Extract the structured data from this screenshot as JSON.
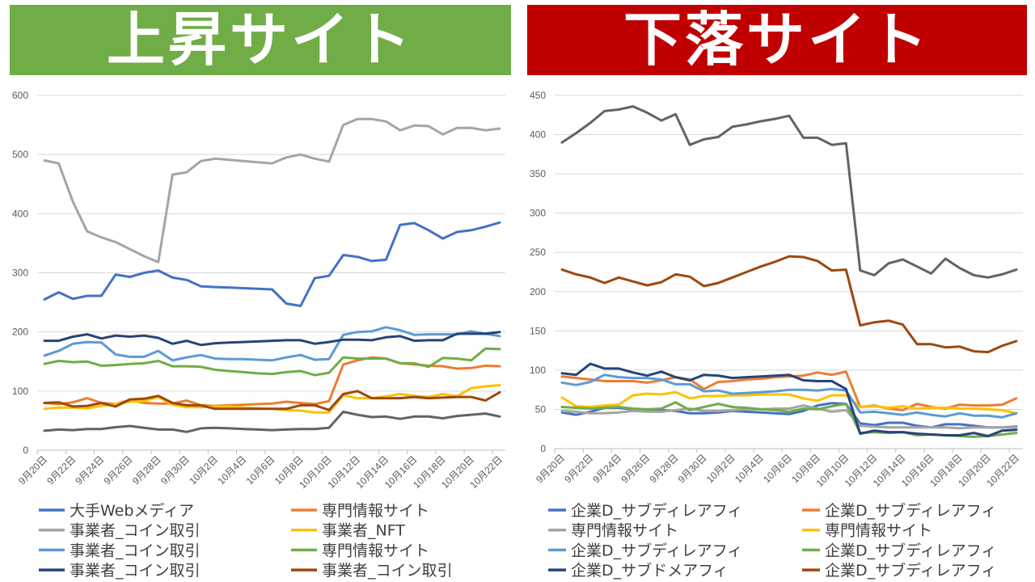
{
  "headers": {
    "left": {
      "title": "上昇サイト",
      "color": "#70AD47"
    },
    "right": {
      "title": "下落サイト",
      "color": "#C00000"
    }
  },
  "chart_data": [
    {
      "type": "line",
      "title": "上昇サイト",
      "ylim": [
        0,
        600
      ],
      "yticks": [
        0,
        100,
        200,
        300,
        400,
        500,
        600
      ],
      "grid": true,
      "legend_position": "bottom",
      "x": [
        "9月20日",
        "9月21日",
        "9月22日",
        "9月23日",
        "9月24日",
        "9月25日",
        "9月26日",
        "9月27日",
        "9月28日",
        "9月29日",
        "9月30日",
        "10月1日",
        "10月2日",
        "10月3日",
        "10月4日",
        "10月5日",
        "10月6日",
        "10月7日",
        "10月8日",
        "10月9日",
        "10月10日",
        "10月11日",
        "10月12日",
        "10月13日",
        "10月14日",
        "10月15日",
        "10月16日",
        "10月17日",
        "10月18日",
        "10月19日",
        "10月20日",
        "10月21日",
        "10月22日"
      ],
      "xtick_labels": [
        "9月20日",
        "9月22日",
        "9月24日",
        "9月26日",
        "9月28日",
        "9月30日",
        "10月2日",
        "10月4日",
        "10月6日",
        "10月8日",
        "10月10日",
        "10月12日",
        "10月14日",
        "10月16日",
        "10月18日",
        "10月20日",
        "10月22日"
      ],
      "series": [
        {
          "name": "大手Webメディア",
          "color": "#4472C4",
          "values": [
            255,
            267,
            256,
            261,
            261,
            297,
            293,
            300,
            304,
            292,
            288,
            277,
            276,
            275,
            274,
            273,
            272,
            248,
            244,
            291,
            295,
            330,
            327,
            320,
            322,
            381,
            384,
            372,
            358,
            369,
            372,
            378,
            385
          ]
        },
        {
          "name": "専門情報サイト",
          "color": "#ED7D31",
          "values": [
            80,
            78,
            81,
            88,
            80,
            78,
            85,
            80,
            79,
            79,
            84,
            76,
            75,
            76,
            77,
            78,
            79,
            82,
            80,
            78,
            83,
            145,
            152,
            157,
            155,
            147,
            145,
            143,
            142,
            138,
            139,
            143,
            142
          ]
        },
        {
          "name": "事業者_コイン取引",
          "color": "#A5A5A5",
          "values": [
            490,
            485,
            420,
            370,
            360,
            352,
            340,
            328,
            318,
            466,
            470,
            489,
            493,
            491,
            489,
            487,
            485,
            495,
            500,
            493,
            488,
            550,
            560,
            560,
            556,
            541,
            549,
            548,
            534,
            545,
            545,
            541,
            544
          ]
        },
        {
          "name": "事業者_NFT",
          "color": "#FFC000",
          "values": [
            70,
            72,
            72,
            71,
            75,
            78,
            82,
            83,
            90,
            77,
            73,
            73,
            74,
            74,
            72,
            71,
            70,
            68,
            67,
            64,
            64,
            93,
            88,
            88,
            91,
            95,
            92,
            90,
            95,
            91,
            105,
            108,
            110
          ]
        },
        {
          "name": "事業者_コイン取引",
          "color": "#5B9BD5",
          "values": [
            160,
            168,
            180,
            183,
            182,
            162,
            158,
            158,
            168,
            152,
            157,
            161,
            155,
            154,
            154,
            153,
            152,
            157,
            161,
            153,
            154,
            195,
            200,
            201,
            208,
            203,
            195,
            196,
            196,
            196,
            201,
            197,
            193
          ]
        },
        {
          "name": "専門情報サイト",
          "color": "#70AD47",
          "values": [
            146,
            151,
            149,
            150,
            143,
            144,
            146,
            147,
            151,
            142,
            142,
            141,
            136,
            134,
            132,
            130,
            129,
            132,
            134,
            127,
            131,
            157,
            155,
            155,
            155,
            147,
            147,
            141,
            156,
            155,
            152,
            172,
            171
          ]
        },
        {
          "name": "事業者_コイン取引",
          "color": "#264478",
          "values": [
            185,
            185,
            192,
            196,
            189,
            194,
            192,
            194,
            190,
            180,
            185,
            178,
            181,
            182,
            183,
            184,
            185,
            186,
            186,
            180,
            183,
            187,
            187,
            186,
            191,
            193,
            185,
            186,
            186,
            197,
            197,
            197,
            200
          ]
        },
        {
          "name": "事業者_コイン取引",
          "color": "#9E480E",
          "values": [
            80,
            81,
            74,
            75,
            80,
            74,
            86,
            87,
            92,
            80,
            76,
            76,
            70,
            70,
            70,
            70,
            70,
            70,
            76,
            76,
            68,
            95,
            100,
            88,
            88,
            88,
            90,
            88,
            89,
            90,
            90,
            84,
            98
          ]
        },
        {
          "color": "#636363",
          "values": [
            33,
            35,
            34,
            36,
            36,
            39,
            41,
            38,
            35,
            35,
            31,
            37,
            38,
            37,
            36,
            35,
            34,
            35,
            36,
            36,
            38,
            65,
            60,
            56,
            57,
            53,
            57,
            57,
            54,
            58,
            60,
            62,
            57
          ]
        }
      ]
    },
    {
      "type": "line",
      "title": "下落サイト",
      "ylim": [
        0,
        450
      ],
      "yticks": [
        0,
        50,
        100,
        150,
        200,
        250,
        300,
        350,
        400,
        450
      ],
      "grid": true,
      "legend_position": "bottom",
      "x": [
        "9月20日",
        "9月21日",
        "9月22日",
        "9月23日",
        "9月24日",
        "9月25日",
        "9月26日",
        "9月27日",
        "9月28日",
        "9月29日",
        "9月30日",
        "10月1日",
        "10月2日",
        "10月3日",
        "10月4日",
        "10月5日",
        "10月6日",
        "10月7日",
        "10月8日",
        "10月9日",
        "10月10日",
        "10月11日",
        "10月12日",
        "10月13日",
        "10月14日",
        "10月15日",
        "10月16日",
        "10月17日",
        "10月18日",
        "10月19日",
        "10月20日",
        "10月21日",
        "10月22日"
      ],
      "xtick_labels": [
        "9月20日",
        "9月22日",
        "9月24日",
        "9月26日",
        "9月28日",
        "9月30日",
        "10月2日",
        "10月4日",
        "10月6日",
        "10月8日",
        "10月10日",
        "10月12日",
        "10月14日",
        "10月16日",
        "10月18日",
        "10月20日",
        "10月22日"
      ],
      "series": [
        {
          "name": "企業D_サブディレアフィ",
          "color": "#4472C4",
          "values": [
            46,
            43,
            47,
            52,
            52,
            50,
            49,
            49,
            48,
            45,
            45,
            46,
            48,
            47,
            46,
            45,
            44,
            48,
            55,
            58,
            57,
            32,
            30,
            33,
            33,
            29,
            27,
            31,
            31,
            29,
            27,
            27,
            28
          ]
        },
        {
          "name": "企業D_サブディレアフィ",
          "color": "#ED7D31",
          "values": [
            92,
            90,
            88,
            86,
            86,
            86,
            84,
            87,
            91,
            88,
            76,
            85,
            86,
            88,
            89,
            91,
            92,
            93,
            97,
            94,
            98,
            53,
            55,
            51,
            49,
            57,
            53,
            51,
            56,
            55,
            55,
            56,
            64
          ]
        },
        {
          "name": "専門情報サイト",
          "color": "#A5A5A5",
          "values": [
            48,
            47,
            45,
            45,
            46,
            48,
            47,
            47,
            49,
            51,
            48,
            48,
            49,
            50,
            50,
            51,
            51,
            55,
            51,
            47,
            49,
            29,
            28,
            27,
            27,
            27,
            27,
            27,
            26,
            27,
            27,
            27,
            27
          ]
        },
        {
          "name": "専門情報サイト",
          "color": "#FFC000",
          "values": [
            65,
            54,
            53,
            55,
            56,
            68,
            70,
            69,
            72,
            64,
            67,
            67,
            68,
            68,
            69,
            69,
            69,
            64,
            61,
            68,
            68,
            53,
            54,
            52,
            54,
            51,
            52,
            52,
            51,
            51,
            50,
            49,
            45
          ]
        },
        {
          "name": "企業D_サブディレアフィ",
          "color": "#5B9BD5",
          "values": [
            84,
            81,
            85,
            94,
            91,
            90,
            90,
            88,
            82,
            82,
            73,
            74,
            70,
            71,
            72,
            73,
            75,
            75,
            74,
            76,
            74,
            46,
            47,
            45,
            43,
            46,
            43,
            41,
            45,
            42,
            42,
            40,
            45
          ]
        },
        {
          "name": "企業D_サブディレアフィ",
          "color": "#70AD47",
          "values": [
            53,
            52,
            51,
            52,
            53,
            51,
            50,
            51,
            59,
            49,
            53,
            57,
            53,
            52,
            50,
            49,
            47,
            51,
            50,
            54,
            57,
            20,
            21,
            20,
            21,
            17,
            18,
            17,
            16,
            15,
            16,
            18,
            20
          ]
        },
        {
          "name": "企業D_サブドメアフィ",
          "color": "#264478",
          "values": [
            96,
            94,
            108,
            102,
            102,
            97,
            93,
            98,
            91,
            87,
            94,
            93,
            90,
            91,
            92,
            93,
            94,
            87,
            86,
            86,
            76,
            19,
            23,
            21,
            21,
            19,
            18,
            17,
            17,
            20,
            16,
            23,
            24
          ]
        },
        {
          "name": "企業D_サブディレアフィ",
          "color": "#9E480E",
          "values": [
            228,
            222,
            218,
            211,
            218,
            213,
            208,
            212,
            222,
            219,
            207,
            211,
            218,
            225,
            232,
            238,
            245,
            244,
            239,
            227,
            228,
            157,
            161,
            163,
            158,
            133,
            133,
            129,
            130,
            124,
            123,
            131,
            137
          ]
        },
        {
          "color": "#636363",
          "values": [
            390,
            402,
            415,
            430,
            432,
            436,
            428,
            418,
            426,
            387,
            394,
            397,
            410,
            413,
            417,
            420,
            424,
            396,
            396,
            387,
            389,
            227,
            221,
            236,
            241,
            232,
            223,
            242,
            230,
            221,
            218,
            222,
            228
          ]
        }
      ]
    }
  ]
}
